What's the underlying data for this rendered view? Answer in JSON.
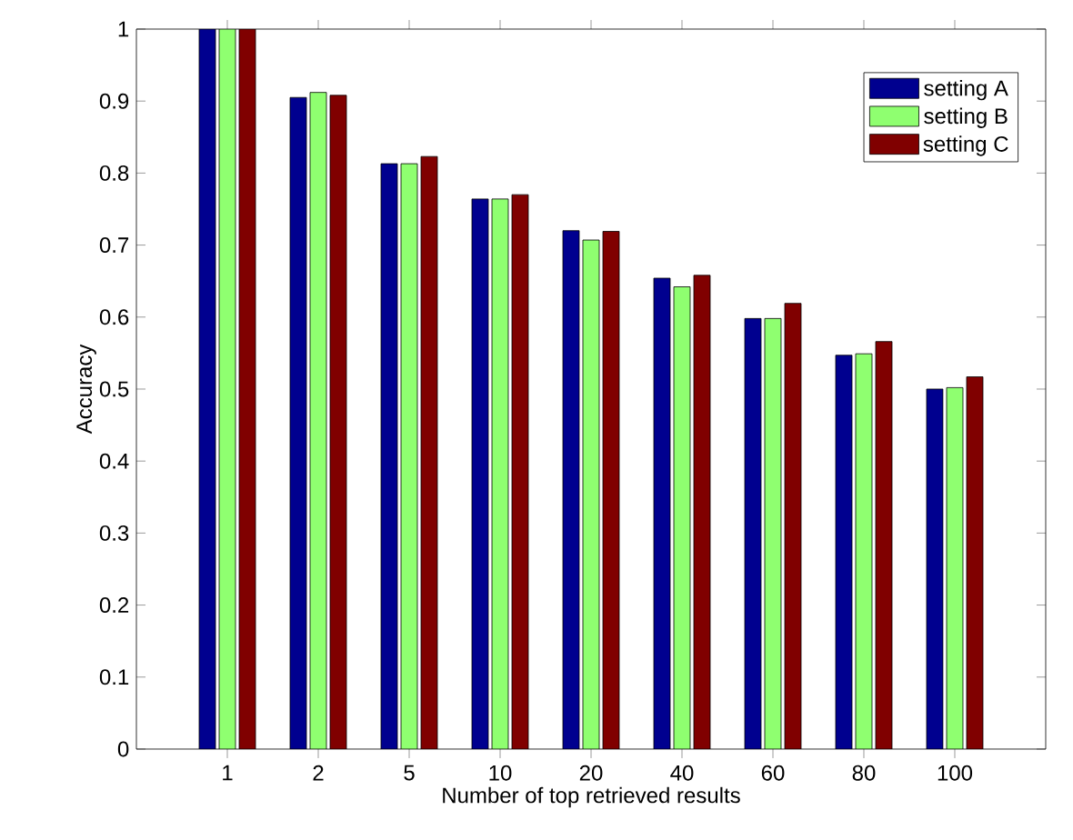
{
  "chart_data": {
    "type": "bar",
    "xlabel": "Number of top retrieved results",
    "ylabel": "Accuracy",
    "categories": [
      "1",
      "2",
      "5",
      "10",
      "20",
      "40",
      "60",
      "80",
      "100"
    ],
    "series": [
      {
        "name": "setting A",
        "color": "#00008f",
        "values": [
          1,
          0.905,
          0.813,
          0.764,
          0.72,
          0.654,
          0.598,
          0.547,
          0.5
        ]
      },
      {
        "name": "setting B",
        "color": "#8fff70",
        "values": [
          1,
          0.912,
          0.813,
          0.764,
          0.707,
          0.642,
          0.598,
          0.549,
          0.502
        ]
      },
      {
        "name": "setting C",
        "color": "#800000",
        "values": [
          1,
          0.908,
          0.823,
          0.77,
          0.719,
          0.658,
          0.619,
          0.566,
          0.517
        ]
      }
    ],
    "ylim": [
      0,
      1
    ],
    "yticks": [
      0,
      0.1,
      0.2,
      0.3,
      0.4,
      0.5,
      0.6,
      0.7,
      0.8,
      0.9,
      1
    ],
    "legend": "top right",
    "grid": false
  }
}
